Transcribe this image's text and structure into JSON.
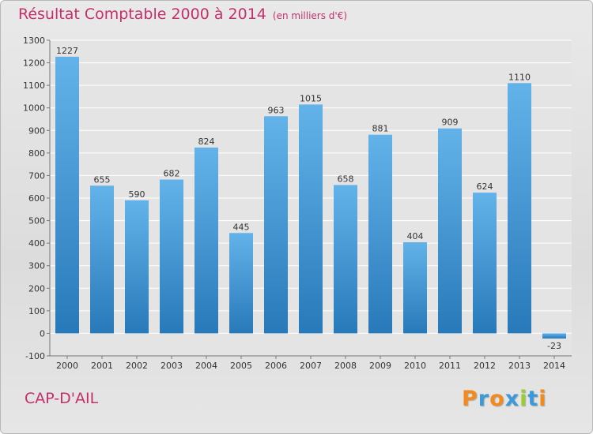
{
  "header": {
    "title": "Résultat Comptable 2000 à 2014",
    "subtitle": "(en milliers d'€)"
  },
  "footer": {
    "commune": "CAP-D'AIL",
    "logo_letters": [
      "P",
      "r",
      "o",
      "x",
      "i",
      "t",
      "i"
    ],
    "logo_colors": [
      "#f28a1d",
      "#3b9ad9",
      "#f28a1d",
      "#3b9ad9",
      "#9acd32",
      "#3b9ad9",
      "#f28a1d"
    ]
  },
  "colors": {
    "bar_top": "#63b3ea",
    "bar_bottom": "#2879b9",
    "accent": "#c3306a"
  },
  "chart_data": {
    "type": "bar",
    "title": "Résultat Comptable 2000 à 2014",
    "subtitle": "(en milliers d'€)",
    "categories": [
      "2000",
      "2001",
      "2002",
      "2003",
      "2004",
      "2005",
      "2006",
      "2007",
      "2008",
      "2009",
      "2010",
      "2011",
      "2012",
      "2013",
      "2014"
    ],
    "values": [
      1227,
      655,
      590,
      682,
      824,
      445,
      963,
      1015,
      658,
      881,
      404,
      909,
      624,
      1110,
      -23
    ],
    "ylim": [
      -100,
      1300
    ],
    "yticks": [
      -100,
      0,
      100,
      200,
      300,
      400,
      500,
      600,
      700,
      800,
      900,
      1000,
      1100,
      1200,
      1300
    ],
    "grid": true,
    "data_labels": true
  }
}
